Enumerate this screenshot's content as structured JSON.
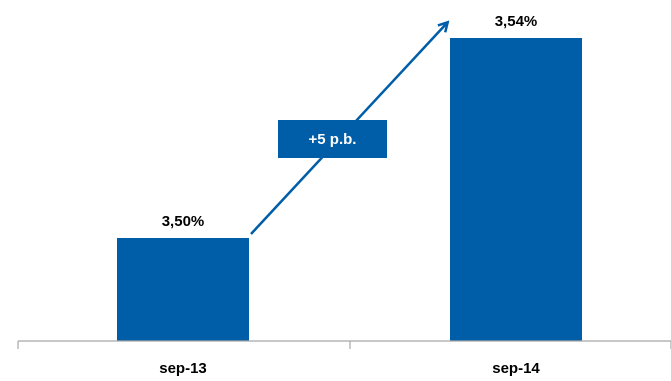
{
  "chart_data": {
    "type": "bar",
    "categories": [
      "sep-13",
      "sep-14"
    ],
    "values": [
      3.5,
      3.54
    ],
    "value_labels": [
      "3,50%",
      "3,54%"
    ],
    "annotation": {
      "label": "+5 p.b.",
      "kind": "arrow",
      "from_category": "sep-13",
      "to_category": "sep-14"
    },
    "grid": false,
    "legend": "none",
    "colors": {
      "bar": "#005ea8",
      "annotation_box": "#005ea8",
      "annotation_text": "#ffffff",
      "arrow": "#005ea8",
      "axis": "#a6a6a6",
      "label_text": "#000000"
    }
  }
}
